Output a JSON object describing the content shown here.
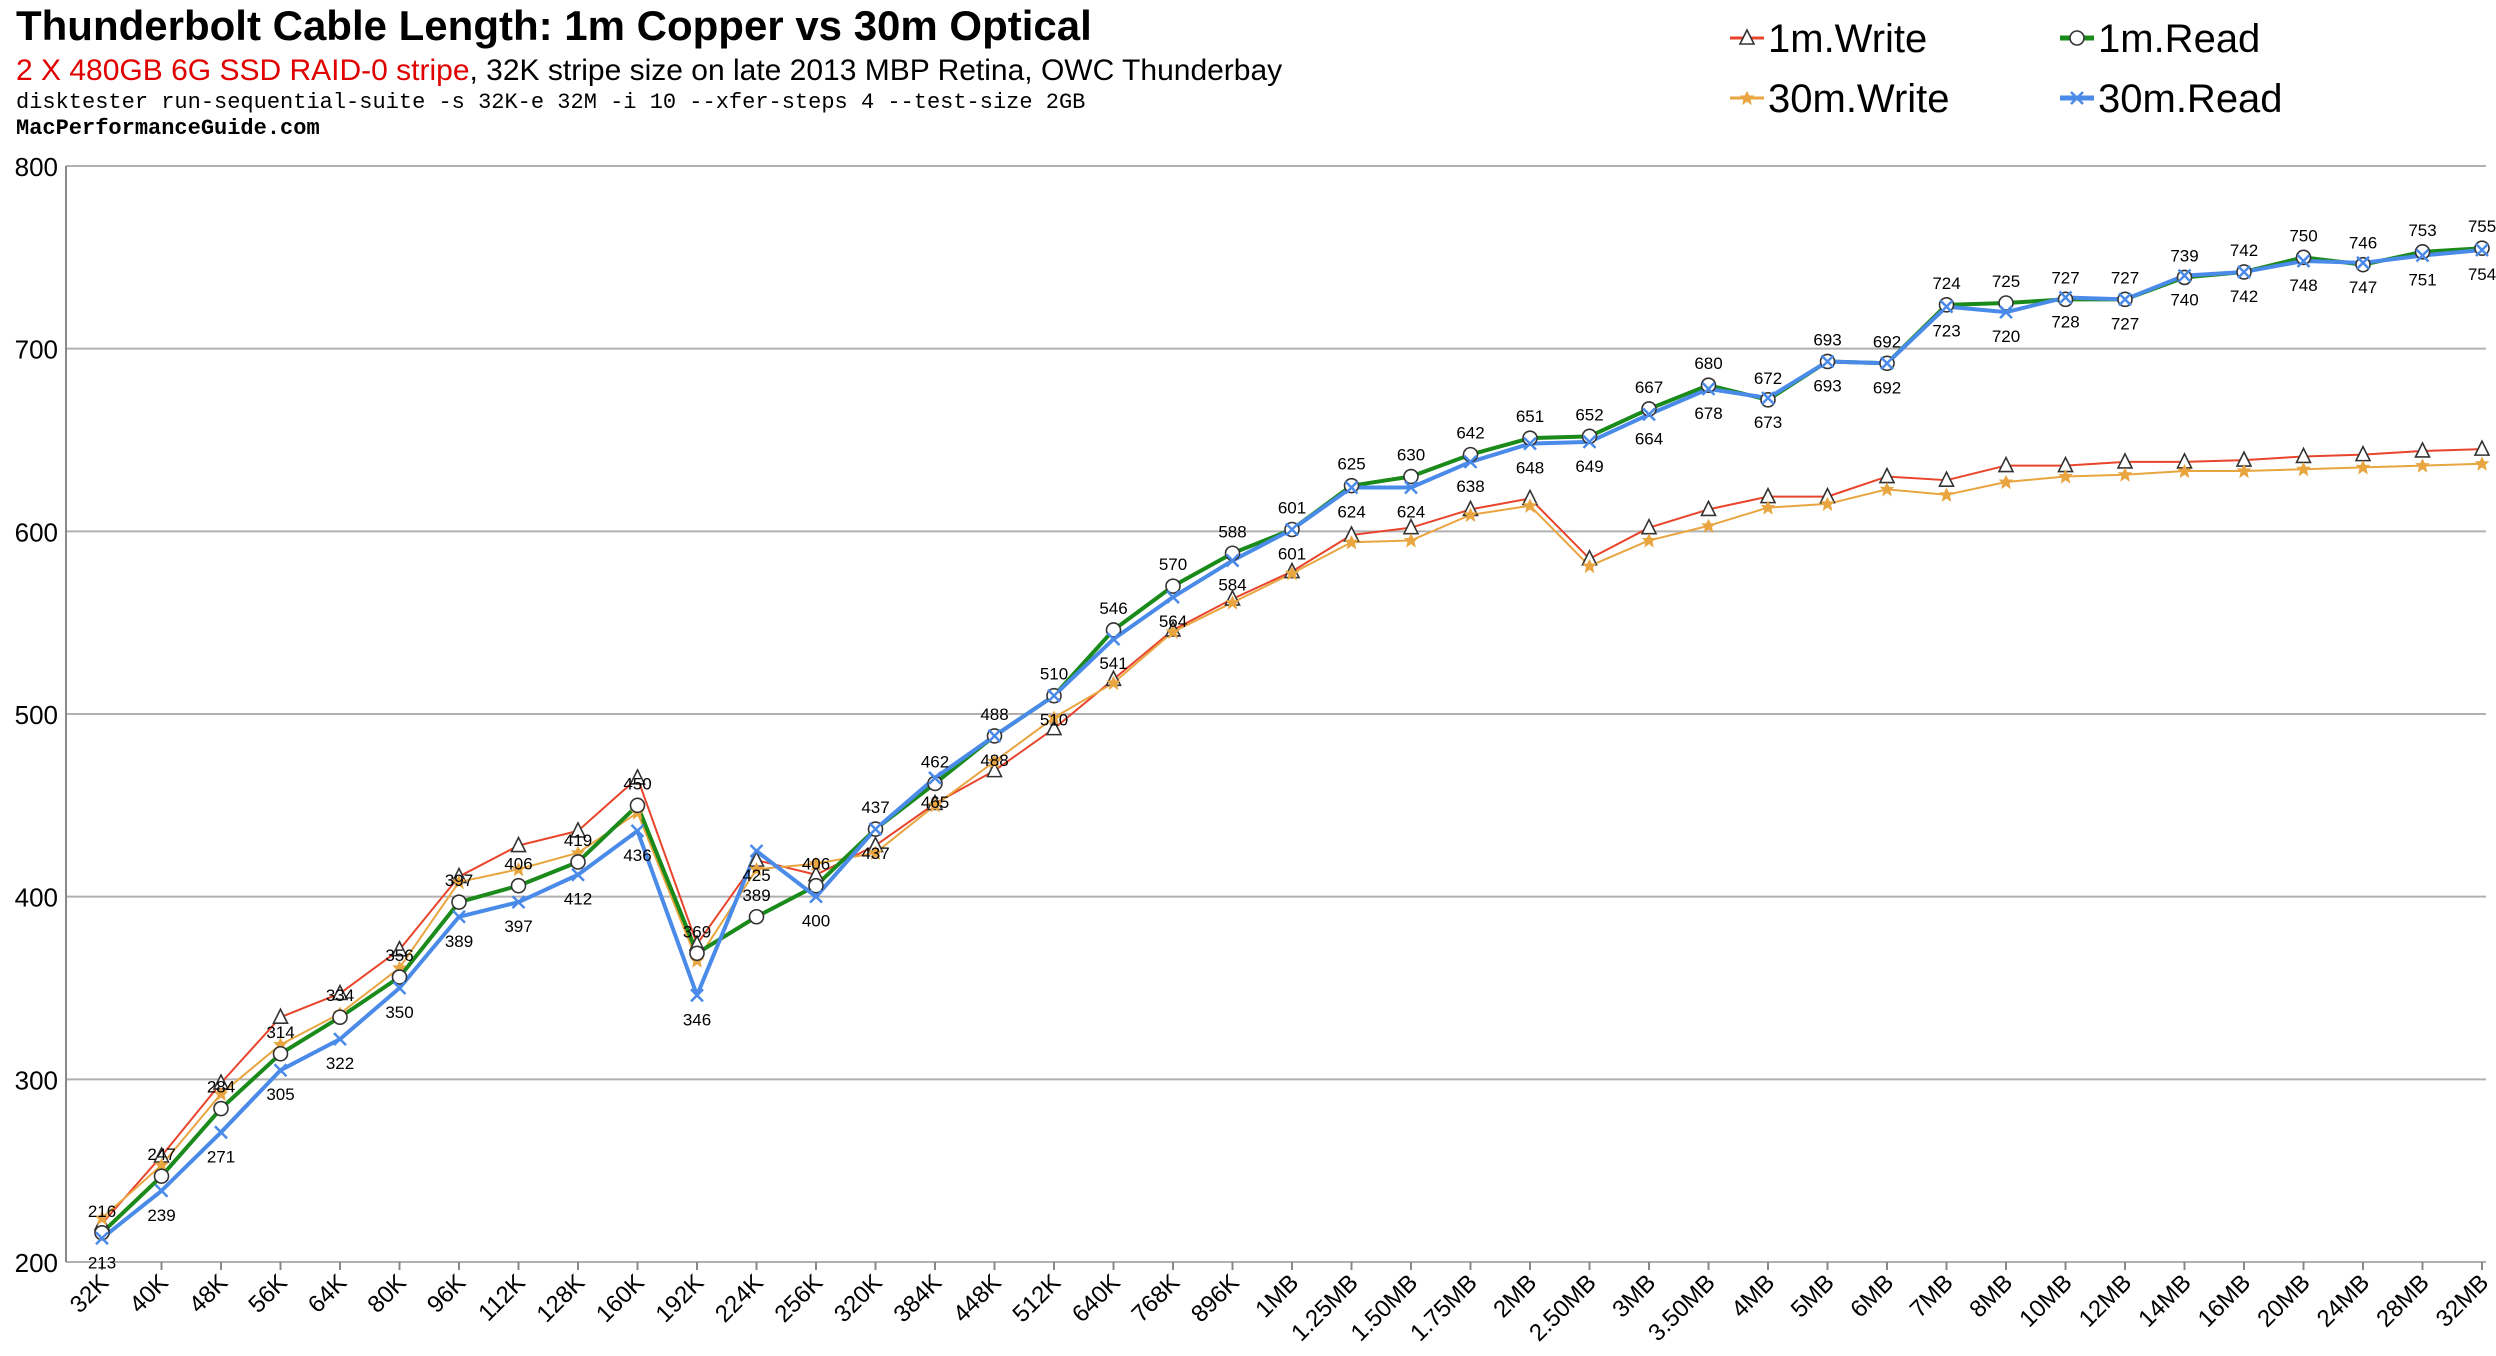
{
  "header": {
    "title": "Thunderbolt Cable Length: 1m Copper vs 30m Optical",
    "subtitle_red": "2 X 480GB 6G SSD RAID-0 stripe",
    "subtitle_rest": ", 32K stripe size on late 2013 MBP Retina, OWC Thunderbay",
    "command": "disktester run-sequential-suite -s 32K-e 32M -i 10 --xfer-steps 4 --test-size 2GB",
    "site": "MacPerformanceGuide.com"
  },
  "colors": {
    "write1m": "#e8452c",
    "read1m": "#1a8a1a",
    "write30m": "#e8a540",
    "read30m": "#4a8ae8",
    "subtitle_red": "#e00000",
    "site": "#0000cc",
    "grid": "#b0b0b0"
  },
  "chart_data": {
    "type": "line",
    "categories": [
      "32K",
      "40K",
      "48K",
      "56K",
      "64K",
      "80K",
      "96K",
      "112K",
      "128K",
      "160K",
      "192K",
      "224K",
      "256K",
      "320K",
      "384K",
      "448K",
      "512K",
      "640K",
      "768K",
      "896K",
      "1MB",
      "1.25MB",
      "1.50MB",
      "1.75MB",
      "2MB",
      "2.50MB",
      "3MB",
      "3.50MB",
      "4MB",
      "5MB",
      "6MB",
      "7MB",
      "8MB",
      "10MB",
      "12MB",
      "14MB",
      "16MB",
      "20MB",
      "24MB",
      "28MB",
      "32MB"
    ],
    "ylim": [
      200,
      800
    ],
    "yticks": [
      200,
      300,
      400,
      500,
      600,
      700,
      800
    ],
    "grid": true,
    "legend_position": "top-right",
    "series": [
      {
        "name": "1m.Write",
        "marker": "triangle",
        "color_key": "write1m",
        "values": [
          221,
          258,
          298,
          334,
          347,
          371,
          411,
          428,
          436,
          465,
          374,
          420,
          412,
          428,
          451,
          469,
          492,
          519,
          546,
          563,
          578,
          598,
          602,
          612,
          618,
          585,
          602,
          612,
          619,
          619,
          630,
          628,
          636,
          636,
          638,
          638,
          639,
          641,
          642,
          644,
          645
        ]
      },
      {
        "name": "1m.Read",
        "marker": "circle",
        "color_key": "read1m",
        "values": [
          216,
          247,
          284,
          314,
          334,
          356,
          397,
          406,
          419,
          450,
          369,
          389,
          406,
          437,
          462,
          488,
          510,
          546,
          570,
          588,
          601,
          625,
          630,
          642,
          651,
          652,
          667,
          680,
          672,
          693,
          692,
          724,
          725,
          727,
          727,
          739,
          742,
          750,
          746,
          753,
          755
        ]
      },
      {
        "name": "30m.Write",
        "marker": "star",
        "color_key": "write30m",
        "values": [
          224,
          253,
          292,
          319,
          336,
          361,
          408,
          415,
          424,
          446,
          365,
          415,
          418,
          424,
          450,
          474,
          498,
          517,
          545,
          561,
          577,
          594,
          595,
          609,
          614,
          581,
          595,
          603,
          613,
          615,
          623,
          620,
          627,
          630,
          631,
          633,
          633,
          634,
          635,
          636,
          637
        ]
      },
      {
        "name": "30m.Read",
        "marker": "x",
        "color_key": "read30m",
        "values": [
          213,
          239,
          271,
          305,
          322,
          350,
          389,
          397,
          412,
          436,
          346,
          425,
          400,
          437,
          465,
          488,
          510,
          541,
          564,
          584,
          601,
          624,
          624,
          638,
          648,
          649,
          664,
          678,
          673,
          693,
          692,
          723,
          720,
          728,
          727,
          740,
          742,
          748,
          747,
          751,
          754
        ]
      }
    ],
    "data_labels": {
      "read1m": [
        216,
        247,
        284,
        314,
        334,
        356,
        397,
        406,
        419,
        450,
        369,
        389,
        406,
        437,
        462,
        488,
        510,
        546,
        570,
        588,
        601,
        625,
        630,
        642,
        651,
        652,
        667,
        680,
        672,
        693,
        692,
        724,
        725,
        727,
        727,
        739,
        742,
        750,
        746,
        753,
        755
      ],
      "read30m": [
        213,
        239,
        271,
        305,
        322,
        350,
        389,
        397,
        412,
        436,
        346,
        425,
        400,
        437,
        465,
        488,
        510,
        541,
        564,
        584,
        601,
        624,
        624,
        638,
        648,
        649,
        664,
        678,
        673,
        693,
        692,
        723,
        720,
        728,
        727,
        740,
        742,
        748,
        747,
        751,
        754
      ]
    }
  }
}
